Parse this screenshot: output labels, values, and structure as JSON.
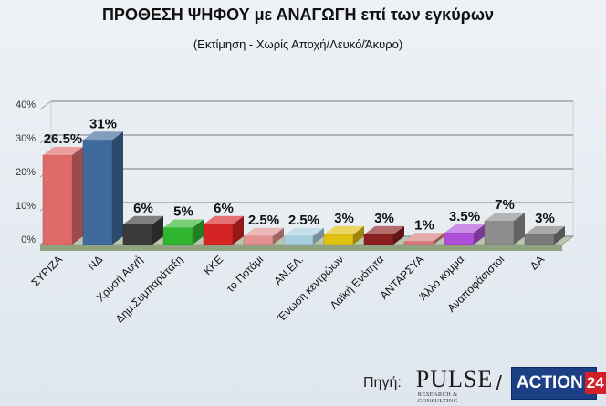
{
  "header": {
    "title": "ΠΡΟΘΕΣΗ ΨΗΦΟΥ με ΑΝΑΓΩΓΗ επί των εγκύρων",
    "subtitle": "(Εκτίμηση  -  Χωρίς Αποχή/Λευκό/Άκυρο)"
  },
  "source": {
    "label": "Πηγή:",
    "pulse": "PULSE",
    "pulse_sub": "RESEARCH & CONSULTING",
    "separator": "/",
    "action_text": "ACTION",
    "action_num": "24"
  },
  "chart_data": {
    "type": "bar",
    "title": "ΠΡΟΘΕΣΗ ΨΗΦΟΥ με ΑΝΑΓΩΓΗ επί των εγκύρων",
    "subtitle": "(Εκτίμηση  -  Χωρίς Αποχή/Λευκό/Άκυρο)",
    "categories": [
      "ΣΥΡΙΖΑ",
      "ΝΔ",
      "Χρυσή Αυγή",
      "Δημ.Συμπαράταξη",
      "ΚΚΕ",
      "το Ποτάμι",
      "ΑΝ.ΕΛ.",
      "Ένωση κεντρώων",
      "Λαϊκή Ενότητα",
      "ΑΝΤΑΡΣΥΑ",
      "Άλλο κόμμα",
      "Αναποφάσιστοι",
      "ΔΑ"
    ],
    "values": [
      26.5,
      31,
      6,
      5,
      6,
      2.5,
      2.5,
      3,
      3,
      1,
      3.5,
      7,
      3
    ],
    "value_labels": [
      "26.5%",
      "31%",
      "6%",
      "5%",
      "6%",
      "2.5%",
      "2.5%",
      "3%",
      "3%",
      "1%",
      "3.5%",
      "7%",
      "3%"
    ],
    "colors": [
      "#e06a6a",
      "#3f6a9c",
      "#3a3a3a",
      "#2fb52f",
      "#d42424",
      "#e29090",
      "#a8cfe0",
      "#e0c010",
      "#8a1f1f",
      "#d97a7a",
      "#b04fd8",
      "#8d8d8d",
      "#7b7b7b"
    ],
    "yticks": [
      "0%",
      "10%",
      "20%",
      "30%",
      "40%"
    ],
    "ylim": [
      0,
      40
    ],
    "grid": true,
    "style": "3d-bar"
  }
}
